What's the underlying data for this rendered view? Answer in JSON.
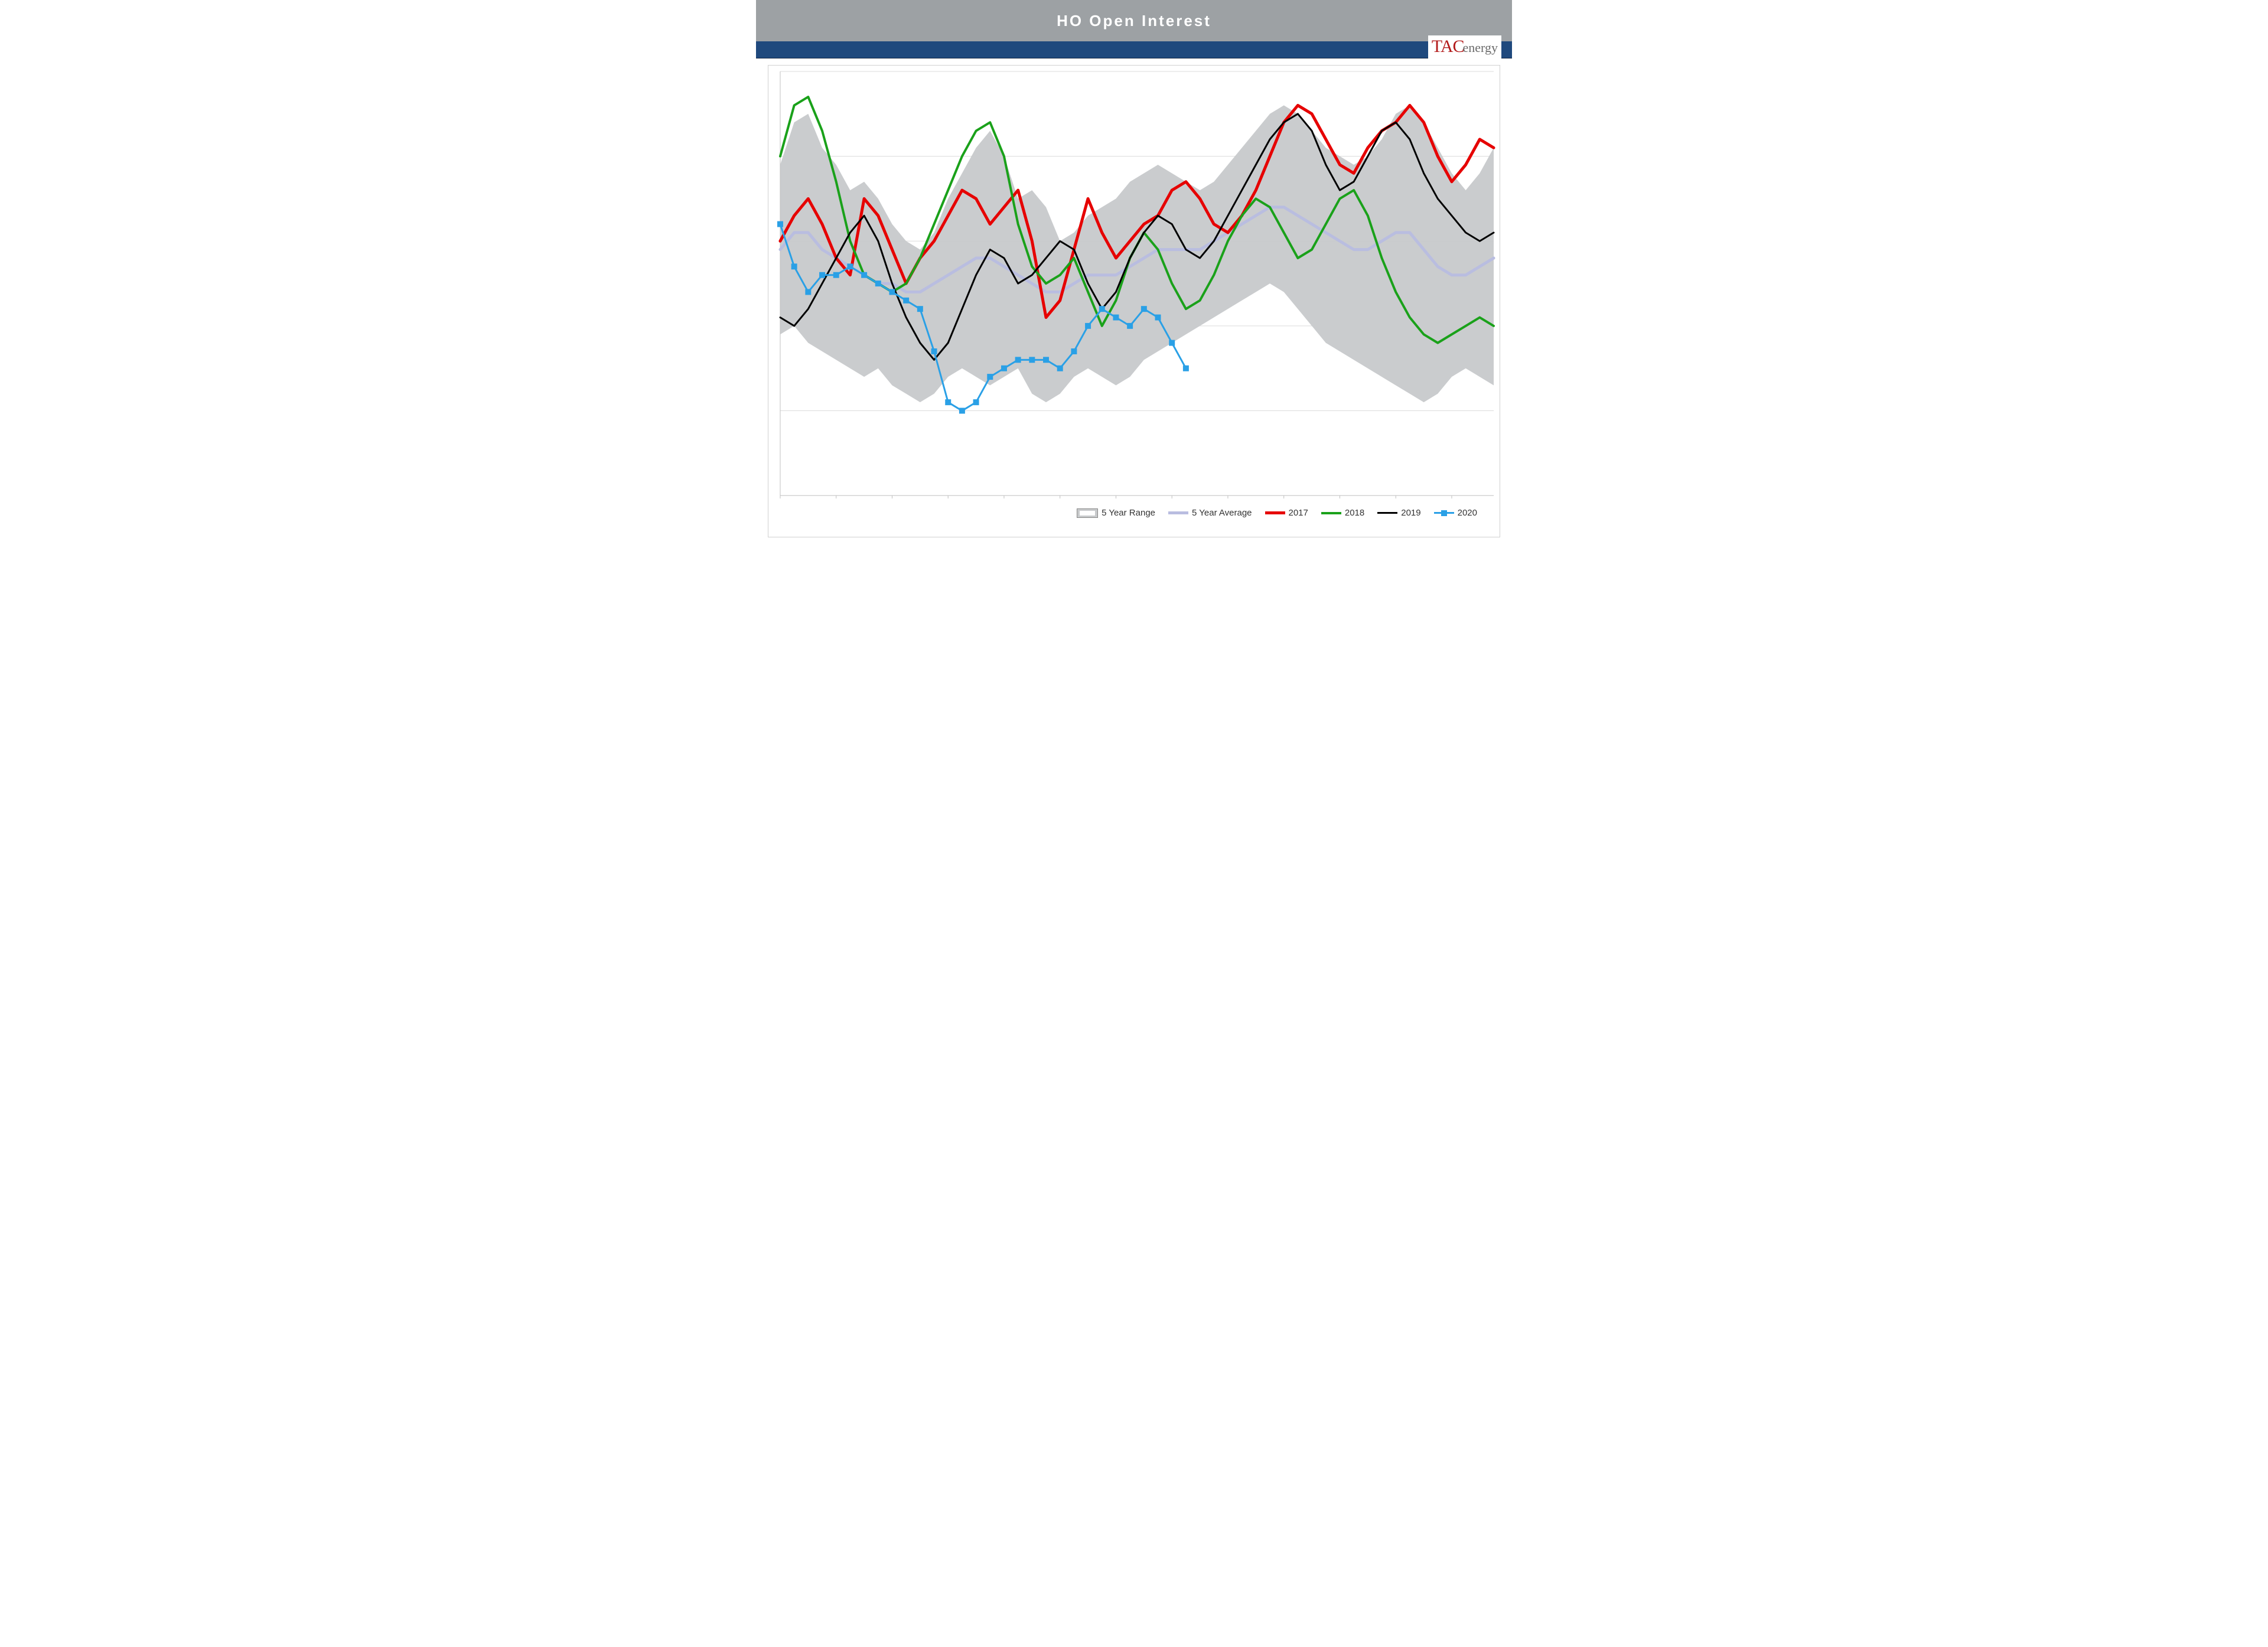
{
  "header": {
    "title": "HO Open Interest",
    "title_color": "#ffffff",
    "bar_color": "#9da1a4",
    "band_color": "#1f497d"
  },
  "logo": {
    "tac": "TAC",
    "energy": "energy",
    "tac_color": "#b31b1b",
    "energy_color": "#6b6b6b"
  },
  "chart": {
    "type": "line-with-range",
    "background_color": "#ffffff",
    "grid_color": "#dcdcdc",
    "axis_color": "#bfbfbf",
    "x_count": 52,
    "ylim": [
      0,
      100
    ],
    "y_gridlines": [
      20,
      40,
      60,
      80,
      100
    ],
    "range": {
      "label": "5 Year Range",
      "fill_color": "#c7c9cb",
      "upper": [
        78,
        88,
        90,
        82,
        78,
        72,
        74,
        70,
        64,
        60,
        58,
        62,
        70,
        76,
        82,
        86,
        80,
        70,
        72,
        68,
        60,
        62,
        66,
        68,
        70,
        74,
        76,
        78,
        76,
        74,
        72,
        74,
        78,
        82,
        86,
        90,
        92,
        90,
        86,
        82,
        80,
        78,
        80,
        84,
        90,
        92,
        88,
        82,
        76,
        72,
        76,
        82
      ],
      "lower": [
        38,
        40,
        36,
        34,
        32,
        30,
        28,
        30,
        26,
        24,
        22,
        24,
        28,
        30,
        28,
        26,
        28,
        30,
        24,
        22,
        24,
        28,
        30,
        28,
        26,
        28,
        32,
        34,
        36,
        38,
        40,
        42,
        44,
        46,
        48,
        50,
        48,
        44,
        40,
        36,
        34,
        32,
        30,
        28,
        26,
        24,
        22,
        24,
        28,
        30,
        28,
        26
      ]
    },
    "series": [
      {
        "name": "5 Year Average",
        "label": "5 Year Average",
        "color": "#b9bde0",
        "width": 5,
        "values": [
          58,
          62,
          62,
          58,
          56,
          54,
          52,
          50,
          50,
          48,
          48,
          50,
          52,
          54,
          56,
          56,
          54,
          52,
          50,
          48,
          48,
          50,
          52,
          52,
          52,
          54,
          56,
          58,
          58,
          58,
          58,
          60,
          62,
          64,
          66,
          68,
          68,
          66,
          64,
          62,
          60,
          58,
          58,
          60,
          62,
          62,
          58,
          54,
          52,
          52,
          54,
          56
        ]
      },
      {
        "name": "2017",
        "label": "2017",
        "color": "#e60000",
        "width": 5,
        "values": [
          60,
          66,
          70,
          64,
          56,
          52,
          70,
          66,
          58,
          50,
          56,
          60,
          66,
          72,
          70,
          64,
          68,
          72,
          60,
          42,
          46,
          58,
          70,
          62,
          56,
          60,
          64,
          66,
          72,
          74,
          70,
          64,
          62,
          66,
          72,
          80,
          88,
          92,
          90,
          84,
          78,
          76,
          82,
          86,
          88,
          92,
          88,
          80,
          74,
          78,
          84,
          82
        ]
      },
      {
        "name": "2018",
        "label": "2018",
        "color": "#1aa11a",
        "width": 4,
        "values": [
          80,
          92,
          94,
          86,
          74,
          60,
          52,
          50,
          48,
          50,
          56,
          64,
          72,
          80,
          86,
          88,
          80,
          64,
          54,
          50,
          52,
          56,
          48,
          40,
          46,
          56,
          62,
          58,
          50,
          44,
          46,
          52,
          60,
          66,
          70,
          68,
          62,
          56,
          58,
          64,
          70,
          72,
          66,
          56,
          48,
          42,
          38,
          36,
          38,
          40,
          42,
          40
        ]
      },
      {
        "name": "2019",
        "label": "2019",
        "color": "#000000",
        "width": 3,
        "values": [
          42,
          40,
          44,
          50,
          56,
          62,
          66,
          60,
          50,
          42,
          36,
          32,
          36,
          44,
          52,
          58,
          56,
          50,
          52,
          56,
          60,
          58,
          50,
          44,
          48,
          56,
          62,
          66,
          64,
          58,
          56,
          60,
          66,
          72,
          78,
          84,
          88,
          90,
          86,
          78,
          72,
          74,
          80,
          86,
          88,
          84,
          76,
          70,
          66,
          62,
          60,
          62
        ]
      },
      {
        "name": "2020",
        "label": "2020",
        "color": "#2aa0e6",
        "width": 3,
        "marker": "square",
        "marker_size": 9,
        "values": [
          64,
          54,
          48,
          52,
          52,
          54,
          52,
          50,
          48,
          46,
          44,
          34,
          22,
          20,
          22,
          28,
          30,
          32,
          32,
          32,
          30,
          34,
          40,
          44,
          42,
          40,
          44,
          42,
          36,
          30
        ]
      }
    ],
    "legend": {
      "items": [
        {
          "key": "range",
          "label": "5 Year Range"
        },
        {
          "key": "avg",
          "label": "5 Year Average"
        },
        {
          "key": "2017",
          "label": "2017"
        },
        {
          "key": "2018",
          "label": "2018"
        },
        {
          "key": "2019",
          "label": "2019"
        },
        {
          "key": "2020",
          "label": "2020"
        }
      ]
    }
  }
}
